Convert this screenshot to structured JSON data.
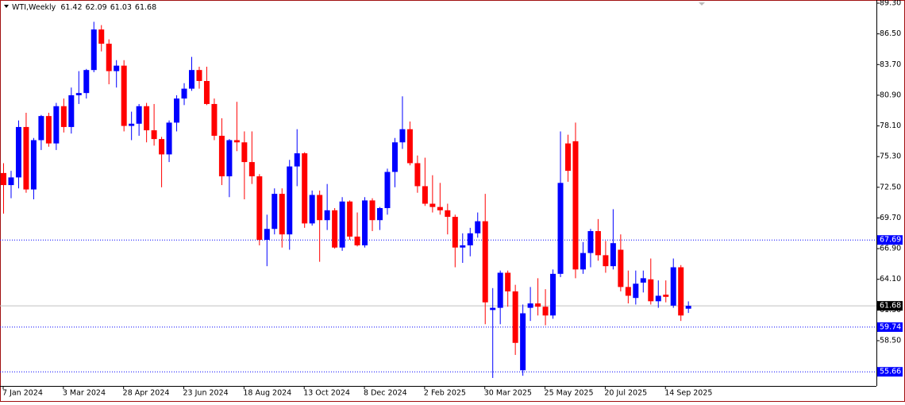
{
  "chart_data": {
    "type": "candlestick",
    "title": "WTI,Weekly",
    "categories": [
      "7 Jan 2024",
      null,
      null,
      null,
      null,
      null,
      null,
      null,
      "3 Mar 2024",
      null,
      null,
      null,
      null,
      null,
      null,
      null,
      "28 Apr 2024",
      null,
      null,
      null,
      null,
      null,
      null,
      null,
      "23 Jun 2024",
      null,
      null,
      null,
      null,
      null,
      null,
      null,
      "18 Aug 2024",
      null,
      null,
      null,
      null,
      null,
      null,
      null,
      "13 Oct 2024",
      null,
      null,
      null,
      null,
      null,
      null,
      null,
      "8 Dec 2024",
      null,
      null,
      null,
      null,
      null,
      null,
      null,
      "2 Feb 2025",
      null,
      null,
      null,
      null,
      null,
      null,
      null,
      "30 Mar 2025",
      null,
      null,
      null,
      null,
      null,
      null,
      null,
      "25 May 2025",
      null,
      null,
      null,
      null,
      null,
      null,
      null,
      "20 Jul 2025",
      null,
      null,
      null,
      null,
      null,
      null,
      null,
      "14 Sep 2025",
      null,
      null,
      null
    ],
    "open": [
      73.8,
      72.7,
      73.4,
      78.0,
      72.3,
      76.8,
      79.0,
      76.5,
      79.9,
      78.0,
      80.9,
      81.1,
      83.2,
      86.9,
      85.6,
      83.1,
      83.6,
      78.1,
      78.3,
      79.9,
      77.7,
      76.9,
      75.5,
      78.4,
      80.6,
      81.5,
      83.2,
      82.2,
      80.1,
      77.2,
      73.5,
      76.8,
      76.6,
      74.8,
      73.5,
      67.7,
      68.7,
      71.9,
      68.2,
      74.4,
      75.6,
      69.2,
      71.8,
      69.5,
      70.4,
      67.0,
      71.2,
      68.0,
      67.2,
      71.3,
      69.5,
      70.6,
      73.9,
      76.6,
      77.8,
      74.7,
      72.6,
      71.0,
      70.7,
      70.4,
      69.8,
      67.0,
      67.2,
      68.3,
      69.4,
      61.3,
      61.5,
      64.7,
      63.0,
      55.8,
      61.5,
      61.9,
      61.6,
      60.8,
      64.6,
      76.5,
      76.7,
      65.0,
      66.5,
      68.5,
      66.3,
      65.3,
      66.8,
      63.4,
      62.4,
      63.8,
      64.1,
      62.1,
      62.7,
      61.7,
      65.2,
      61.42
    ],
    "high": [
      74.7,
      74.0,
      78.6,
      79.3,
      77.0,
      79.1,
      79.3,
      80.2,
      80.6,
      81.6,
      83.1,
      83.3,
      87.6,
      87.3,
      86.0,
      84.1,
      84.1,
      79.4,
      80.1,
      80.2,
      80.1,
      77.1,
      78.6,
      80.9,
      82.0,
      84.4,
      83.5,
      83.5,
      80.6,
      78.8,
      76.9,
      80.3,
      77.6,
      77.6,
      73.7,
      70.0,
      72.4,
      72.4,
      75.0,
      77.8,
      75.7,
      72.2,
      72.2,
      72.8,
      70.6,
      71.6,
      71.3,
      70.2,
      71.6,
      71.5,
      70.7,
      74.2,
      77.0,
      80.8,
      78.5,
      75.4,
      75.2,
      73.6,
      72.9,
      71.0,
      70.0,
      68.3,
      68.8,
      70.2,
      71.9,
      63.3,
      64.9,
      64.9,
      63.6,
      61.8,
      63.4,
      64.2,
      63.2,
      65.0,
      77.6,
      77.3,
      78.4,
      67.5,
      68.7,
      69.6,
      67.6,
      70.5,
      68.2,
      64.9,
      64.9,
      64.9,
      66.0,
      64.0,
      64.0,
      66.0,
      65.4,
      62.09
    ],
    "low": [
      70.1,
      71.5,
      72.4,
      72.0,
      71.4,
      75.9,
      76.2,
      75.9,
      77.5,
      77.4,
      80.1,
      80.6,
      83.0,
      84.9,
      81.9,
      81.6,
      77.6,
      76.8,
      77.2,
      76.6,
      76.3,
      72.5,
      74.8,
      77.6,
      80.0,
      81.3,
      81.5,
      80.0,
      76.8,
      72.7,
      71.6,
      75.8,
      71.4,
      72.8,
      67.2,
      65.3,
      68.2,
      67.0,
      66.8,
      72.6,
      68.8,
      69.0,
      65.7,
      68.6,
      66.9,
      66.7,
      67.7,
      67.1,
      67.0,
      68.5,
      68.6,
      70.0,
      72.5,
      76.0,
      74.5,
      72.0,
      70.8,
      70.2,
      70.0,
      68.2,
      65.2,
      65.6,
      66.2,
      67.9,
      60.0,
      55.1,
      60.0,
      61.6,
      57.2,
      55.3,
      60.3,
      60.8,
      59.9,
      60.5,
      64.3,
      73.0,
      64.2,
      64.6,
      65.2,
      65.8,
      64.7,
      65.0,
      63.0,
      61.9,
      61.8,
      62.9,
      61.8,
      61.5,
      62.0,
      61.5,
      60.3,
      61.03
    ],
    "close": [
      72.7,
      73.4,
      78.0,
      72.3,
      76.8,
      79.0,
      76.5,
      79.9,
      78.0,
      80.9,
      81.1,
      83.2,
      86.9,
      85.6,
      83.1,
      83.6,
      78.1,
      78.3,
      79.9,
      77.7,
      76.9,
      75.5,
      78.4,
      80.6,
      81.5,
      83.2,
      82.2,
      80.1,
      77.2,
      73.5,
      76.8,
      76.6,
      74.8,
      73.5,
      67.7,
      68.7,
      71.9,
      68.2,
      74.4,
      75.6,
      69.2,
      71.8,
      69.5,
      70.4,
      67.0,
      71.2,
      68.0,
      67.2,
      71.3,
      69.5,
      70.6,
      73.9,
      76.6,
      77.8,
      74.7,
      72.6,
      71.0,
      70.7,
      70.4,
      69.8,
      67.0,
      67.2,
      68.3,
      69.4,
      62.0,
      61.5,
      64.7,
      63.0,
      58.3,
      61.0,
      61.9,
      61.6,
      60.8,
      64.6,
      72.9,
      74.0,
      65.0,
      66.5,
      68.5,
      66.3,
      65.3,
      67.4,
      63.4,
      62.6,
      63.7,
      64.2,
      62.1,
      62.6,
      62.5,
      65.2,
      60.8,
      61.68
    ],
    "up_color": "#0000ff",
    "down_color": "#ff0000",
    "ylim": [
      54.37,
      89.59
    ],
    "yticks": [
      {
        "value": 89.3,
        "label": "89.30"
      },
      {
        "value": 86.5,
        "label": "86.50"
      },
      {
        "value": 83.7,
        "label": "83.70"
      },
      {
        "value": 80.9,
        "label": "80.90"
      },
      {
        "value": 78.1,
        "label": "78.10"
      },
      {
        "value": 75.3,
        "label": "75.30"
      },
      {
        "value": 72.5,
        "label": "72.50"
      },
      {
        "value": 69.7,
        "label": "69.70"
      },
      {
        "value": 66.9,
        "label": "66.90"
      },
      {
        "value": 64.1,
        "label": "64.10"
      },
      {
        "value": 61.3,
        "label": "61.30"
      },
      {
        "value": 58.5,
        "label": "58.50"
      }
    ],
    "levels": [
      67.69,
      59.74,
      55.66
    ],
    "level_color": "#0000ff",
    "grid": false
  }
}
